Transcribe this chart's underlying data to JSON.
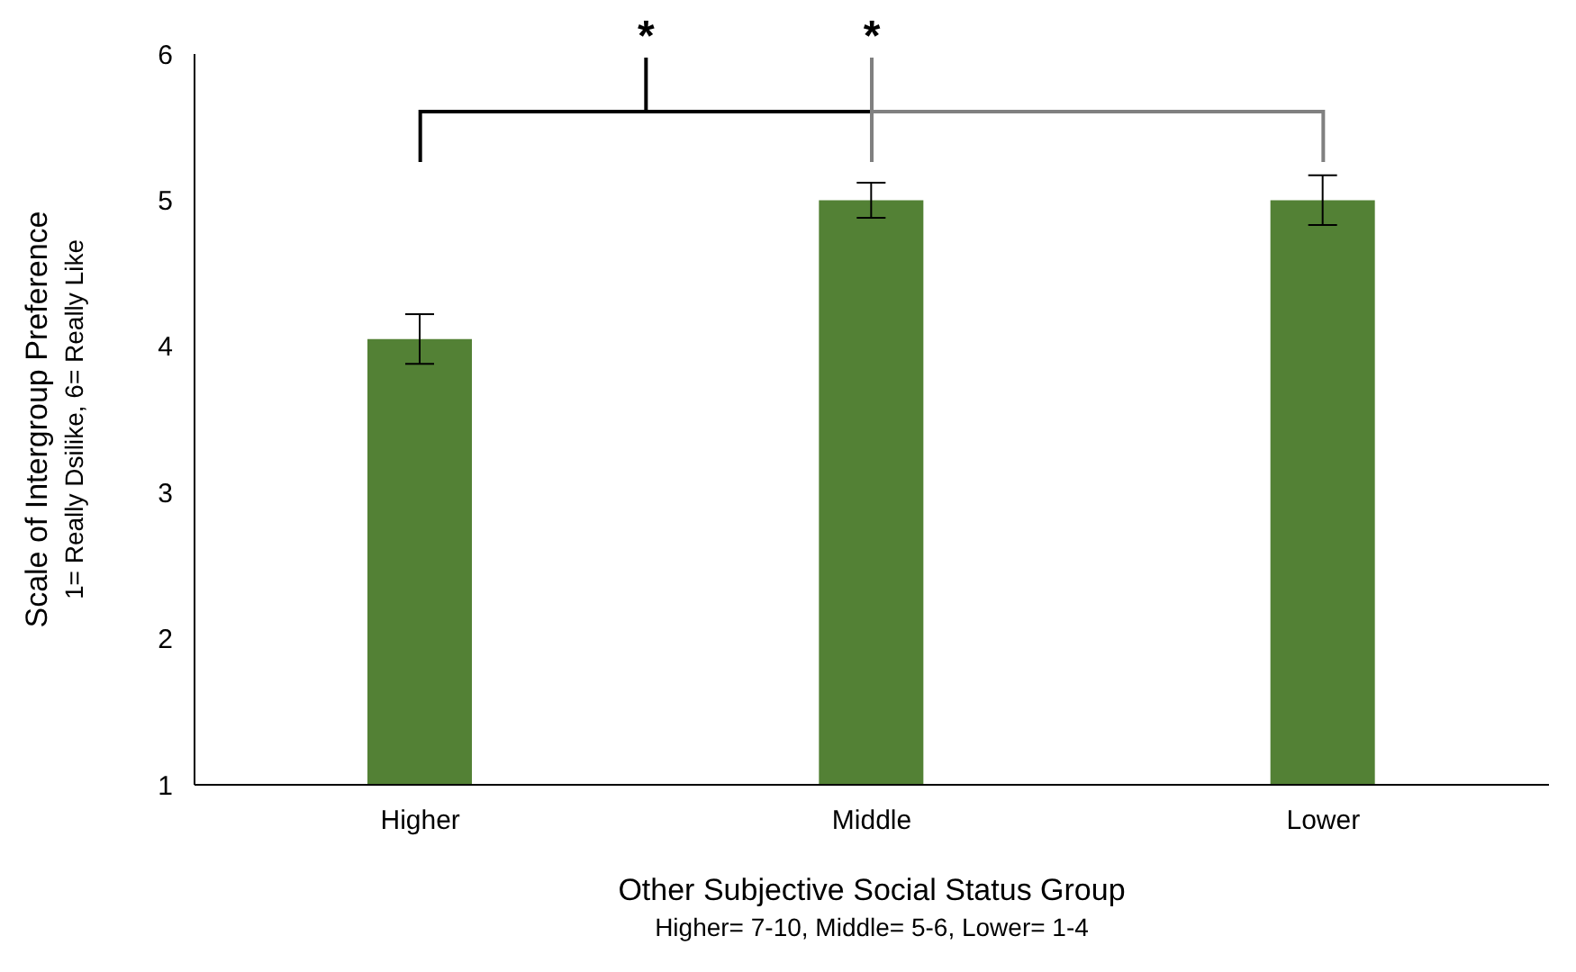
{
  "chart_data": {
    "type": "bar",
    "xlabel": "Other Subjective Social Status Group\nHigher= 7-10, Middle= 5-6, Lower= 1-4",
    "ylabel": "Scale of Intergroup Preference\n1= Really Dsilike, 6= Really Like",
    "categories": [
      "Higher",
      "Middle",
      "Lower"
    ],
    "values": [
      4.05,
      5.0,
      5.0
    ],
    "errors": [
      0.17,
      0.12,
      0.17
    ],
    "color": "#538135",
    "ylim": [
      1,
      6
    ],
    "yticks": [
      1,
      2,
      3,
      4,
      5,
      6
    ],
    "grid": false,
    "annotations": [
      "*",
      "*"
    ]
  }
}
